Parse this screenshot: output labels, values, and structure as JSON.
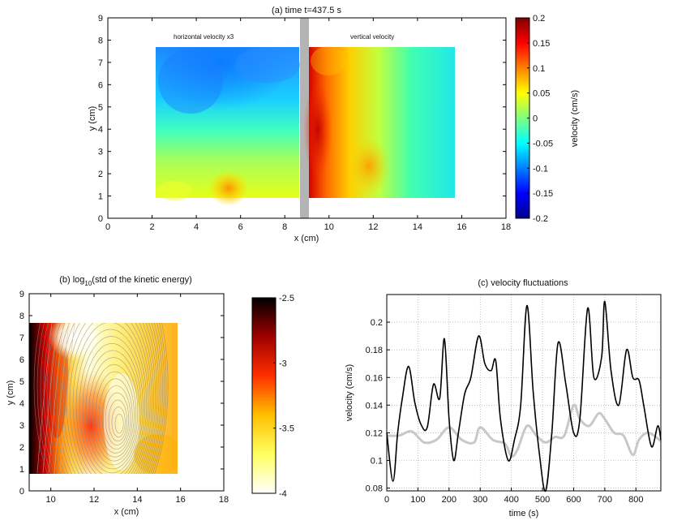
{
  "chart_data": [
    {
      "type": "heatmap",
      "title": "(a) time t=437.5 s",
      "xlabel": "x (cm)",
      "ylabel": "y (cm)",
      "xlim": [
        0,
        18
      ],
      "ylim": [
        0,
        9
      ],
      "xticks": [
        "0",
        "2",
        "4",
        "6",
        "8",
        "10",
        "12",
        "14",
        "16",
        "18"
      ],
      "yticks": [
        "0",
        "1",
        "2",
        "3",
        "4",
        "5",
        "6",
        "7",
        "8",
        "9"
      ],
      "left_field_label": "horizontal velocity x3",
      "right_field_label": "vertical velocity",
      "left_field_extent": {
        "x": [
          2.2,
          8.8
        ],
        "y": [
          0.8,
          7.7
        ]
      },
      "right_field_extent": {
        "x": [
          9.2,
          15.8
        ],
        "y": [
          0.8,
          7.7
        ]
      },
      "separator_x": [
        8.8,
        9.2
      ],
      "colorbar": {
        "label": "velocity (cm/s)",
        "range": [
          -0.2,
          0.2
        ],
        "ticks": [
          "0.2",
          "0.15",
          "0.1",
          "0.05",
          "0",
          "-0.05",
          "-0.1",
          "-0.15",
          "-0.2"
        ]
      }
    },
    {
      "type": "heatmap",
      "title_prefix": "(b) log",
      "title_sub": "10",
      "title_suffix": "(std of the kinetic energy)",
      "xlabel": "x (cm)",
      "ylabel": "y (cm)",
      "xlim": [
        9,
        18
      ],
      "ylim": [
        0,
        9
      ],
      "xticks": [
        "10",
        "12",
        "14",
        "16",
        "18"
      ],
      "yticks": [
        "0",
        "1",
        "2",
        "3",
        "4",
        "5",
        "6",
        "7",
        "8",
        "9"
      ],
      "field_extent": {
        "x": [
          9,
          15.8
        ],
        "y": [
          0.8,
          7.7
        ]
      },
      "vortex_center": {
        "x": 13.2,
        "y": 3.0
      },
      "colorbar": {
        "range": [
          -4,
          -2.5
        ],
        "ticks": [
          "-2.5",
          "-3",
          "-3.5",
          "-4"
        ]
      }
    },
    {
      "type": "line",
      "title": "(c) velocity fluctuations",
      "xlabel": "time (s)",
      "ylabel": "velocity (cm/s)",
      "xlim": [
        0,
        880
      ],
      "ylim": [
        0.078,
        0.22
      ],
      "xticks": [
        "0",
        "100",
        "200",
        "300",
        "400",
        "500",
        "600",
        "700",
        "800"
      ],
      "yticks": [
        "0.08",
        "0.1",
        "0.12",
        "0.14",
        "0.16",
        "0.18",
        "0.2"
      ],
      "grid": true,
      "series": [
        {
          "name": "black",
          "color": "#000000",
          "x": [
            0,
            20,
            35,
            50,
            70,
            90,
            110,
            130,
            150,
            170,
            185,
            200,
            215,
            230,
            250,
            270,
            295,
            315,
            335,
            350,
            365,
            390,
            410,
            430,
            450,
            470,
            490,
            510,
            530,
            550,
            575,
            600,
            620,
            645,
            665,
            690,
            700,
            720,
            745,
            770,
            790,
            810,
            825,
            850,
            870,
            880
          ],
          "y": [
            0.12,
            0.085,
            0.12,
            0.145,
            0.168,
            0.142,
            0.126,
            0.124,
            0.155,
            0.145,
            0.188,
            0.13,
            0.1,
            0.12,
            0.148,
            0.16,
            0.19,
            0.17,
            0.165,
            0.172,
            0.13,
            0.1,
            0.115,
            0.14,
            0.212,
            0.15,
            0.105,
            0.078,
            0.12,
            0.185,
            0.155,
            0.12,
            0.13,
            0.21,
            0.16,
            0.175,
            0.215,
            0.165,
            0.14,
            0.18,
            0.16,
            0.158,
            0.14,
            0.11,
            0.125,
            0.115
          ]
        },
        {
          "name": "gray",
          "color": "#c8c8c8",
          "x": [
            0,
            40,
            80,
            120,
            160,
            200,
            240,
            280,
            300,
            340,
            380,
            400,
            420,
            450,
            480,
            510,
            540,
            570,
            600,
            620,
            650,
            680,
            700,
            730,
            760,
            790,
            810,
            840,
            880
          ],
          "y": [
            0.118,
            0.118,
            0.121,
            0.113,
            0.115,
            0.124,
            0.115,
            0.113,
            0.124,
            0.115,
            0.112,
            0.103,
            0.108,
            0.125,
            0.118,
            0.113,
            0.117,
            0.118,
            0.14,
            0.13,
            0.125,
            0.134,
            0.13,
            0.12,
            0.118,
            0.104,
            0.115,
            0.12,
            0.114
          ]
        }
      ]
    }
  ]
}
